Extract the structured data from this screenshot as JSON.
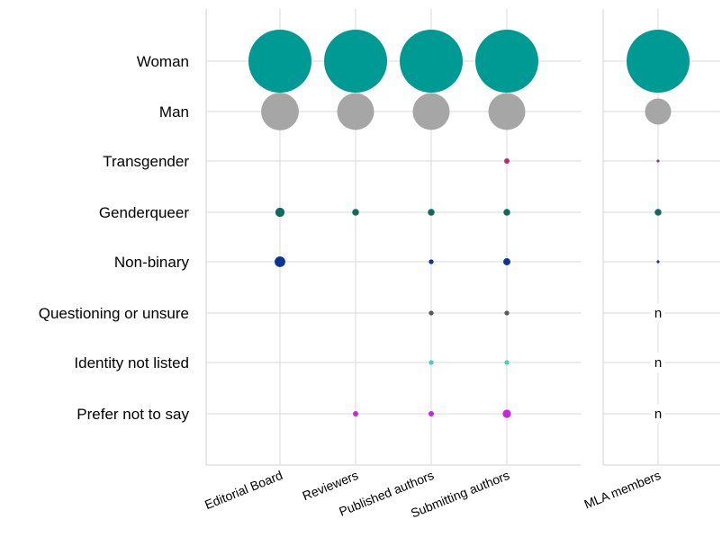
{
  "chart_data": {
    "type": "scatter",
    "title": "",
    "xlabel": "",
    "ylabel": "",
    "grid": true,
    "categories": [
      "Woman",
      "Man",
      "Transgender",
      "Genderqueer",
      "Non-binary",
      "Questioning or unsure",
      "Identity not listed",
      "Prefer not to say"
    ],
    "groups": [
      "Editorial Board",
      "Reviewers",
      "Published authors",
      "Submitting authors",
      "MLA members"
    ],
    "colors": {
      "Woman": "#009a95",
      "Man": "#a6a6a6",
      "Transgender": "#b0287e",
      "Genderqueer": "#0f6a61",
      "Non-binary": "#0c3494",
      "Questioning or unsure": "#5a5a5a",
      "Identity not listed": "#4cc9cf",
      "Prefer not to say": "#cc22e3"
    },
    "not_available_marker": "n",
    "series": [
      {
        "group": "Editorial Board",
        "values": [
          70,
          25,
          0,
          1.5,
          2,
          0,
          0,
          0
        ]
      },
      {
        "group": "Reviewers",
        "values": [
          70,
          24,
          0,
          0.8,
          0,
          0,
          0,
          0.5
        ]
      },
      {
        "group": "Published authors",
        "values": [
          70,
          24,
          0,
          0.8,
          0.4,
          0.4,
          0.4,
          0.5
        ]
      },
      {
        "group": "Submitting authors",
        "values": [
          70,
          24,
          0.5,
          0.8,
          0.9,
          0.4,
          0.4,
          1.2
        ]
      },
      {
        "group": "MLA members",
        "values": [
          70,
          12,
          0.1,
          0.8,
          0.05,
          null,
          null,
          null
        ]
      }
    ]
  }
}
